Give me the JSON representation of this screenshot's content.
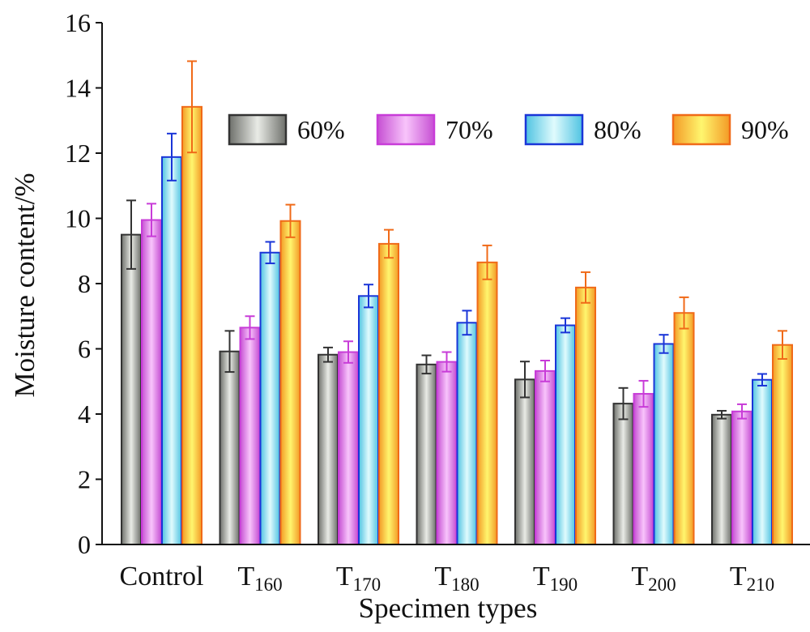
{
  "chart_data": {
    "type": "bar",
    "xlabel": "Specimen types",
    "ylabel": "Moisture content/%",
    "ylim": [
      0,
      16
    ],
    "yticks": [
      "0",
      "2",
      "4",
      "6",
      "8",
      "10",
      "12",
      "14",
      "16"
    ],
    "categories": [
      {
        "label": "Control",
        "base": "Control",
        "sub": ""
      },
      {
        "label": "T160",
        "base": "T",
        "sub": "160"
      },
      {
        "label": "T170",
        "base": "T",
        "sub": "170"
      },
      {
        "label": "T180",
        "base": "T",
        "sub": "180"
      },
      {
        "label": "T190",
        "base": "T",
        "sub": "190"
      },
      {
        "label": "T200",
        "base": "T",
        "sub": "200"
      },
      {
        "label": "T210",
        "base": "T",
        "sub": "210"
      }
    ],
    "series": [
      {
        "name": "60%",
        "values": [
          9.5,
          5.92,
          5.82,
          5.52,
          5.06,
          4.32,
          3.98
        ],
        "errors": [
          1.05,
          0.63,
          0.22,
          0.28,
          0.55,
          0.48,
          0.12
        ],
        "colors": {
          "edge": "#333333",
          "dark": "#6e706b",
          "light": "#e9ebe6"
        }
      },
      {
        "name": "70%",
        "values": [
          9.95,
          6.65,
          5.9,
          5.6,
          5.32,
          4.62,
          4.08
        ],
        "errors": [
          0.5,
          0.35,
          0.33,
          0.3,
          0.32,
          0.4,
          0.22
        ],
        "colors": {
          "edge": "#c83cd8",
          "dark": "#c64fd3",
          "light": "#f8c4fb"
        }
      },
      {
        "name": "80%",
        "values": [
          11.88,
          8.95,
          7.62,
          6.8,
          6.72,
          6.15,
          5.05
        ],
        "errors": [
          0.72,
          0.33,
          0.35,
          0.37,
          0.22,
          0.28,
          0.18
        ],
        "colors": {
          "edge": "#1a35d8",
          "dark": "#4fc3e2",
          "light": "#e0fbfd"
        }
      },
      {
        "name": "90%",
        "values": [
          13.42,
          9.92,
          9.22,
          8.65,
          7.88,
          7.1,
          6.12
        ],
        "errors": [
          1.4,
          0.5,
          0.43,
          0.52,
          0.47,
          0.48,
          0.43
        ],
        "colors": {
          "edge": "#f06a18",
          "dark": "#f39a26",
          "light": "#fff66e"
        }
      }
    ],
    "legend": {
      "placement": "top-right",
      "orientation": "horizontal"
    },
    "grid": false
  }
}
